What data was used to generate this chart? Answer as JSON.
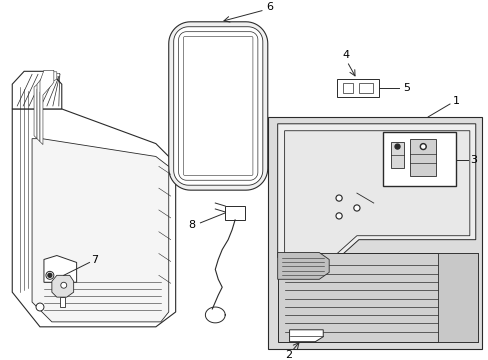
{
  "bg_color": "#ffffff",
  "line_color": "#2a2a2a",
  "label_color": "#000000",
  "shade_light": "#e0e0e0",
  "shade_mid": "#c8c8c8",
  "fig_width": 4.89,
  "fig_height": 3.6,
  "dpi": 100
}
